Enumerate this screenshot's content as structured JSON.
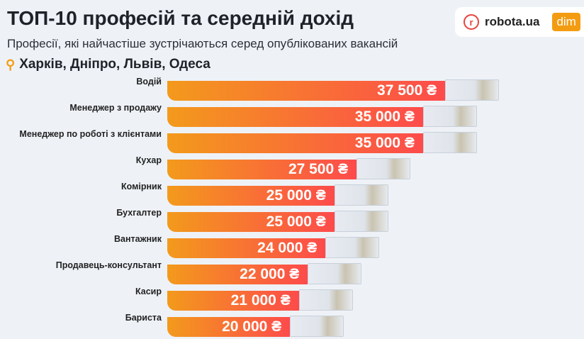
{
  "header": {
    "title": "ТОП-10 професій та середній дохід",
    "subtitle": "Професії, які найчастіше зустрічаються серед опублікованих вакансій",
    "location": "Харків, Дніпро, Львів, Одеса",
    "logo": "robota.ua",
    "logo_partner": "dim"
  },
  "chart_data": {
    "type": "bar",
    "orientation": "horizontal",
    "title": "ТОП-10 професій та середній дохід",
    "currency": "₴",
    "categories": [
      "Водій",
      "Менеджер з продажу",
      "Менеджер по роботі з клієнтами",
      "Кухар",
      "Комірник",
      "Бухгалтер",
      "Вантажник",
      "Продавець-консультант",
      "Касир",
      "Бариста"
    ],
    "values": [
      37500,
      35000,
      35000,
      27500,
      25000,
      25000,
      24000,
      22000,
      21000,
      20000
    ],
    "labels": [
      "37 500 ₴",
      "35 000 ₴",
      "35 000 ₴",
      "27 500 ₴",
      "25 000 ₴",
      "25 000 ₴",
      "24 000 ₴",
      "22 000 ₴",
      "21 000 ₴",
      "20 000 ₴"
    ]
  }
}
